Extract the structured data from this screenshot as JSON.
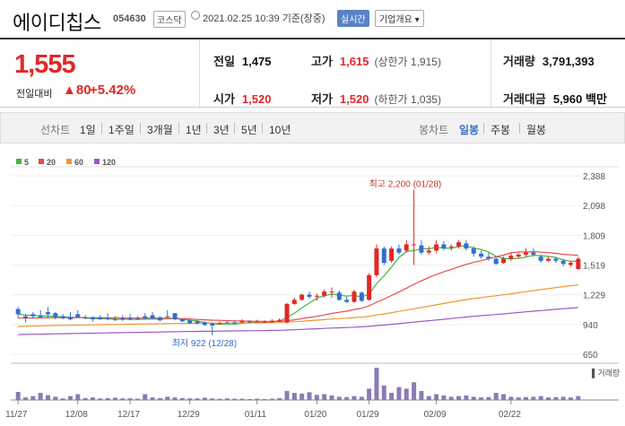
{
  "header": {
    "name": "에이디칩스",
    "code": "054630",
    "market": "코스닥",
    "timestamp": "2021.02.25 10:39 기준(장중)",
    "realtime": "실시간",
    "overview": "기업개요 ▾"
  },
  "quote": {
    "price": "1,555",
    "compare_label": "전일대비",
    "change": "▲80",
    "percent": "+5.42%",
    "prev_label": "전일",
    "prev": "1,475",
    "open_label": "시가",
    "open": "1,520",
    "high_label": "고가",
    "high": "1,615",
    "upper_limit": "(상한가 1,915)",
    "low_label": "저가",
    "low": "1,520",
    "lower_limit": "(하한가 1,035)",
    "volume_label": "거래량",
    "volume": "3,791,393",
    "amount_label": "거래대금",
    "amount": "5,960 백만"
  },
  "periods": {
    "line_label": "선차트",
    "line_items": [
      "1일",
      "1주일",
      "3개월",
      "1년",
      "3년",
      "5년",
      "10년"
    ],
    "candle_label": "봉차트",
    "candle_items": [
      "일봉",
      "주봉",
      "월봉"
    ],
    "active_candle": "일봉"
  },
  "colors": {
    "up": "#e12828",
    "down": "#2f6fd0",
    "ma5": "#3fb53f",
    "ma20": "#e84b4b",
    "ma60": "#f0962e",
    "ma120": "#9b59c6"
  },
  "chart_data": {
    "type": "candlestick",
    "legend": [
      "5",
      "20",
      "60",
      "120"
    ],
    "y_ticks": [
      "2,388",
      "2,098",
      "1,809",
      "1,519",
      "1,229",
      "940",
      "650"
    ],
    "ylim": [
      650,
      2388
    ],
    "x_ticks": [
      "11/27",
      "12/08",
      "12/17",
      "12/29",
      "01/11",
      "01/20",
      "01/29",
      "02/09",
      "02/22"
    ],
    "annotations": {
      "high": "최고 2,200 (01/28)",
      "low": "최저 922 (12/28)"
    },
    "volume_label": "▌거래량",
    "candles": [
      [
        1090,
        1110,
        1040,
        1000
      ],
      [
        1020,
        1040,
        1000,
        960
      ],
      [
        1040,
        1060,
        1020,
        1000
      ],
      [
        1030,
        1080,
        1010,
        1000
      ],
      [
        1060,
        1110,
        1040,
        1000
      ],
      [
        1050,
        1060,
        1010,
        990
      ],
      [
        1020,
        1040,
        1000,
        990
      ],
      [
        1010,
        1060,
        990,
        980
      ],
      [
        1040,
        1080,
        1010,
        1010
      ],
      [
        1010,
        1030,
        1000,
        990
      ],
      [
        1010,
        1020,
        990,
        970
      ],
      [
        1010,
        1030,
        990,
        985
      ],
      [
        1000,
        1050,
        990,
        980
      ],
      [
        990,
        1020,
        985,
        975
      ],
      [
        1000,
        1030,
        990,
        975
      ],
      [
        1000,
        1040,
        990,
        980
      ],
      [
        1000,
        1020,
        990,
        985
      ],
      [
        1020,
        1050,
        1000,
        990
      ],
      [
        1030,
        1060,
        1000,
        990
      ],
      [
        1010,
        1020,
        980,
        970
      ],
      [
        1020,
        1080,
        1010,
        1000
      ],
      [
        1050,
        1050,
        990,
        980
      ],
      [
        990,
        1000,
        970,
        965
      ],
      [
        980,
        990,
        950,
        945
      ],
      [
        970,
        980,
        950,
        940
      ],
      [
        960,
        970,
        935,
        925
      ],
      [
        950,
        960,
        930,
        922
      ],
      [
        945,
        970,
        950,
        940
      ],
      [
        960,
        980,
        955,
        950
      ],
      [
        960,
        980,
        950,
        940
      ],
      [
        960,
        990,
        970,
        960
      ],
      [
        970,
        980,
        960,
        950
      ],
      [
        960,
        985,
        970,
        960
      ],
      [
        965,
        980,
        965,
        955
      ],
      [
        960,
        990,
        975,
        960
      ],
      [
        970,
        1000,
        985,
        970
      ],
      [
        960,
        1150,
        1140,
        950
      ],
      [
        1140,
        1200,
        1180,
        1130
      ],
      [
        1180,
        1240,
        1230,
        1170
      ],
      [
        1230,
        1260,
        1210,
        1190
      ],
      [
        1210,
        1240,
        1220,
        1170
      ],
      [
        1220,
        1280,
        1260,
        1200
      ],
      [
        1260,
        1300,
        1260,
        1200
      ],
      [
        1250,
        1270,
        1180,
        1170
      ],
      [
        1180,
        1210,
        1160,
        1150
      ],
      [
        1160,
        1280,
        1260,
        1150
      ],
      [
        1250,
        1260,
        1170,
        1160
      ],
      [
        1180,
        1440,
        1420,
        1170
      ],
      [
        1420,
        1720,
        1680,
        1400
      ],
      [
        1680,
        1700,
        1540,
        1520
      ],
      [
        1560,
        1700,
        1680,
        1540
      ],
      [
        1680,
        1720,
        1640,
        1620
      ],
      [
        1660,
        1760,
        1720,
        1640
      ],
      [
        1720,
        2200,
        1720,
        1520
      ],
      [
        1710,
        1760,
        1640,
        1620
      ],
      [
        1640,
        1700,
        1660,
        1620
      ],
      [
        1660,
        1760,
        1720,
        1640
      ],
      [
        1720,
        1750,
        1680,
        1660
      ],
      [
        1690,
        1720,
        1700,
        1660
      ],
      [
        1700,
        1760,
        1740,
        1680
      ],
      [
        1730,
        1760,
        1680,
        1660
      ],
      [
        1680,
        1700,
        1630,
        1600
      ],
      [
        1630,
        1660,
        1600,
        1580
      ],
      [
        1600,
        1640,
        1580,
        1560
      ],
      [
        1580,
        1600,
        1530,
        1520
      ],
      [
        1540,
        1600,
        1580,
        1530
      ],
      [
        1580,
        1640,
        1610,
        1560
      ],
      [
        1600,
        1640,
        1620,
        1590
      ],
      [
        1620,
        1680,
        1640,
        1600
      ],
      [
        1640,
        1680,
        1620,
        1600
      ],
      [
        1600,
        1620,
        1560,
        1540
      ],
      [
        1560,
        1600,
        1580,
        1550
      ],
      [
        1580,
        1600,
        1560,
        1540
      ],
      [
        1560,
        1580,
        1530,
        1510
      ],
      [
        1520,
        1560,
        1540,
        1500
      ],
      [
        1480,
        1600,
        1580,
        1470
      ]
    ],
    "volumes": [
      0.25,
      0.08,
      0.12,
      0.22,
      0.15,
      0.1,
      0.05,
      0.12,
      0.18,
      0.06,
      0.08,
      0.05,
      0.06,
      0.07,
      0.05,
      0.05,
      0.04,
      0.18,
      0.08,
      0.06,
      0.1,
      0.08,
      0.06,
      0.05,
      0.05,
      0.07,
      0.05,
      0.04,
      0.05,
      0.04,
      0.04,
      0.03,
      0.04,
      0.03,
      0.04,
      0.06,
      0.28,
      0.22,
      0.2,
      0.24,
      0.16,
      0.18,
      0.14,
      0.1,
      0.09,
      0.12,
      0.1,
      0.35,
      1.0,
      0.45,
      0.22,
      0.4,
      0.35,
      0.55,
      0.28,
      0.12,
      0.18,
      0.14,
      0.1,
      0.12,
      0.14,
      0.1,
      0.08,
      0.09,
      0.22,
      0.18,
      0.1,
      0.08,
      0.09,
      0.1,
      0.12,
      0.08,
      0.09,
      0.1,
      0.08,
      0.12
    ]
  }
}
